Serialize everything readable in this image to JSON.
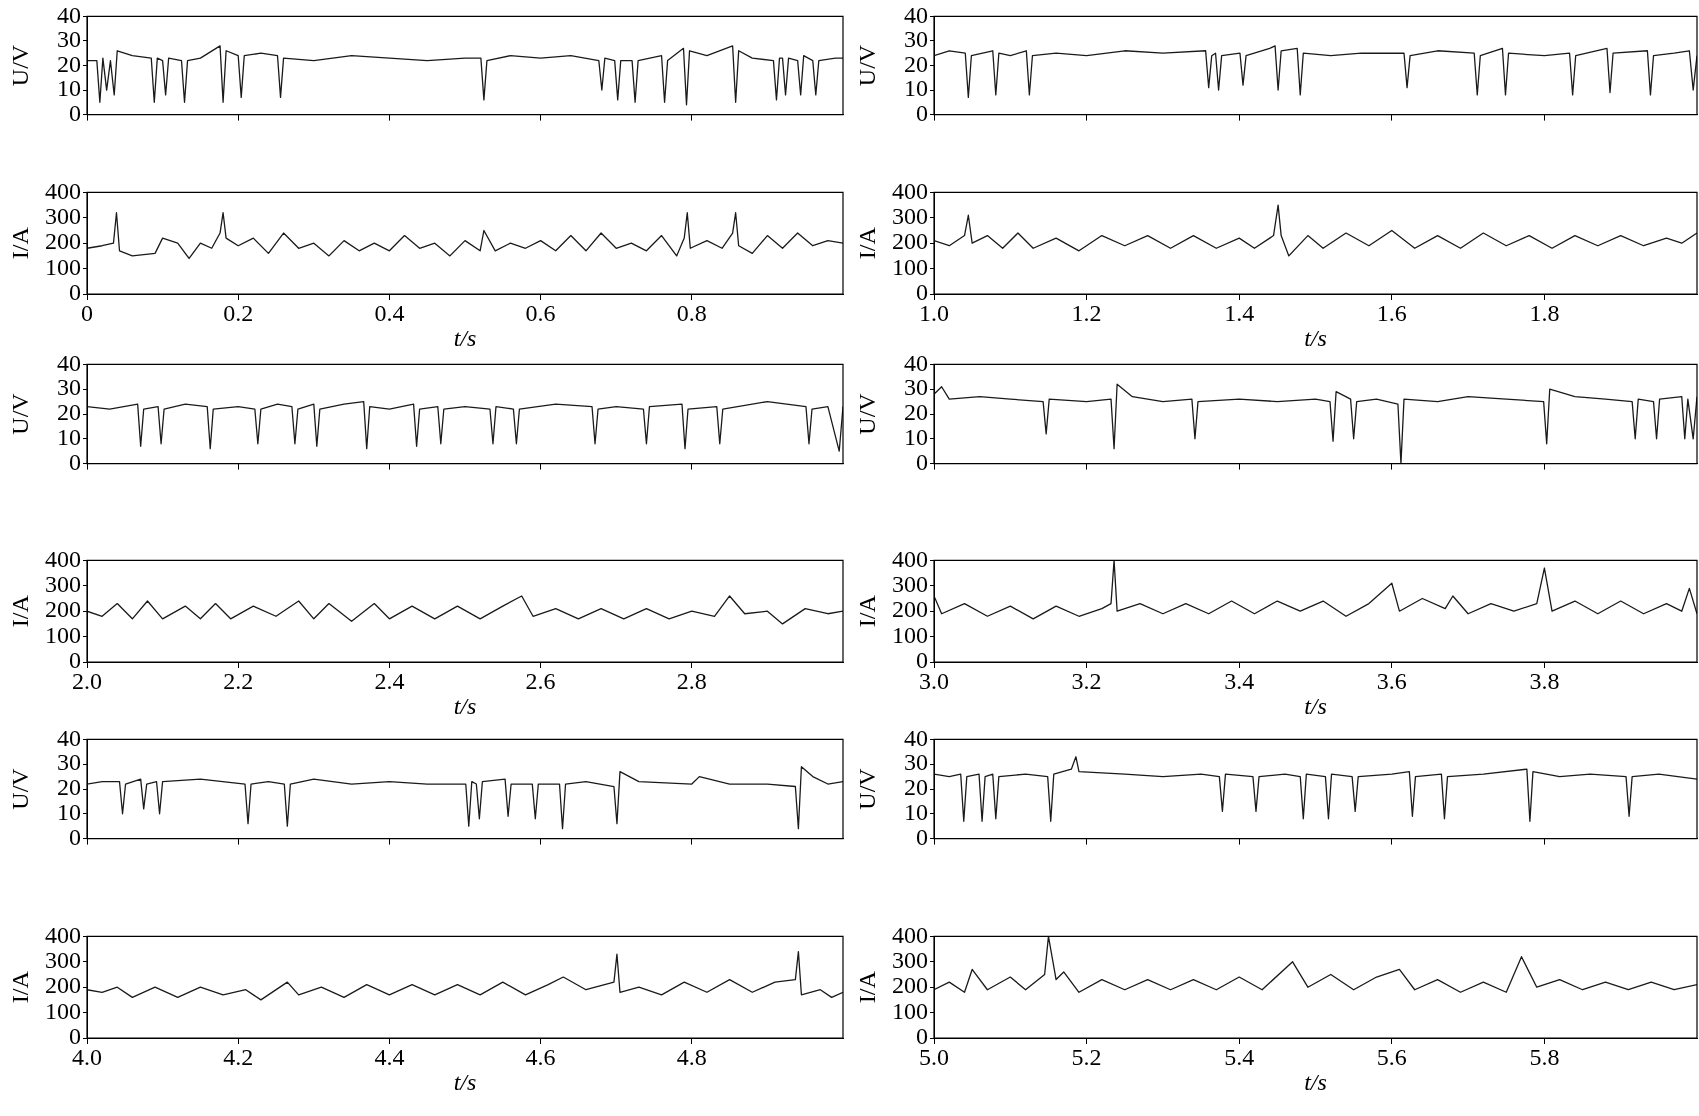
{
  "chart_data": [
    {
      "type": "line",
      "ylabel": "U/V",
      "color": "#1a1a1a",
      "xlim": [
        0,
        1
      ],
      "xticks": [
        0,
        0.2,
        0.4,
        0.6,
        0.8
      ],
      "ylim": [
        0,
        40
      ],
      "yticks": [
        0,
        10,
        20,
        30,
        40
      ],
      "tick_labels": "y",
      "x": [
        0,
        0.013,
        0.017,
        0.021,
        0.026,
        0.031,
        0.036,
        0.04,
        0.06,
        0.085,
        0.089,
        0.093,
        0.1,
        0.104,
        0.108,
        0.125,
        0.129,
        0.133,
        0.15,
        0.176,
        0.18,
        0.184,
        0.2,
        0.204,
        0.208,
        0.23,
        0.252,
        0.256,
        0.26,
        0.3,
        0.35,
        0.4,
        0.45,
        0.5,
        0.521,
        0.525,
        0.529,
        0.56,
        0.6,
        0.64,
        0.677,
        0.681,
        0.685,
        0.698,
        0.702,
        0.706,
        0.721,
        0.725,
        0.729,
        0.76,
        0.764,
        0.768,
        0.789,
        0.793,
        0.797,
        0.82,
        0.854,
        0.858,
        0.862,
        0.88,
        0.908,
        0.912,
        0.916,
        0.92,
        0.924,
        0.928,
        0.94,
        0.944,
        0.948,
        0.96,
        0.964,
        0.968,
        0.99,
        1.0
      ],
      "values": [
        22,
        22,
        5,
        23,
        10,
        22,
        8,
        26,
        24,
        23,
        5,
        23,
        22,
        8,
        23,
        22,
        5,
        22,
        23,
        28,
        5,
        26,
        24,
        7,
        24,
        25,
        24,
        7,
        23,
        22,
        24,
        23,
        22,
        23,
        23,
        6,
        22,
        24,
        23,
        24,
        22,
        10,
        23,
        22,
        6,
        22,
        22,
        5,
        22,
        24,
        5,
        22,
        27,
        4,
        26,
        24,
        28,
        5,
        26,
        23,
        22,
        6,
        23,
        23,
        8,
        23,
        22,
        8,
        24,
        22,
        8,
        22,
        23,
        23
      ]
    },
    {
      "type": "line",
      "ylabel": "U/V",
      "color": "#1a1a1a",
      "xlim": [
        1,
        2
      ],
      "xticks": [
        1,
        1.2,
        1.4,
        1.6,
        1.8
      ],
      "ylim": [
        0,
        40
      ],
      "yticks": [
        0,
        10,
        20,
        30,
        40
      ],
      "tick_labels": "y",
      "x": [
        1,
        1.02,
        1.041,
        1.045,
        1.049,
        1.077,
        1.081,
        1.085,
        1.1,
        1.121,
        1.125,
        1.129,
        1.16,
        1.2,
        1.25,
        1.3,
        1.356,
        1.36,
        1.364,
        1.369,
        1.373,
        1.377,
        1.401,
        1.405,
        1.409,
        1.44,
        1.447,
        1.451,
        1.455,
        1.476,
        1.48,
        1.484,
        1.52,
        1.56,
        1.616,
        1.62,
        1.624,
        1.66,
        1.708,
        1.712,
        1.716,
        1.745,
        1.749,
        1.753,
        1.8,
        1.833,
        1.837,
        1.841,
        1.882,
        1.886,
        1.89,
        1.935,
        1.939,
        1.943,
        1.97,
        1.99,
        1.995,
        2.0
      ],
      "values": [
        24,
        26,
        25,
        7,
        24,
        26,
        8,
        25,
        24,
        26,
        8,
        24,
        25,
        24,
        26,
        25,
        26,
        11,
        24,
        25,
        10,
        24,
        25,
        12,
        24,
        27,
        28,
        10,
        26,
        27,
        8,
        25,
        24,
        25,
        25,
        11,
        24,
        26,
        25,
        8,
        24,
        27,
        8,
        25,
        24,
        25,
        8,
        24,
        27,
        9,
        25,
        26,
        8,
        24,
        25,
        26,
        10,
        24
      ]
    },
    {
      "type": "line",
      "ylabel": "I/A",
      "xlabel": "t/s",
      "color": "#1a1a1a",
      "xlim": [
        0,
        1
      ],
      "xticks": [
        0,
        0.2,
        0.4,
        0.6,
        0.8
      ],
      "ylim": [
        0,
        400
      ],
      "yticks": [
        0,
        100,
        200,
        300,
        400
      ],
      "x": [
        0,
        0.02,
        0.035,
        0.039,
        0.043,
        0.06,
        0.09,
        0.1,
        0.12,
        0.135,
        0.15,
        0.165,
        0.176,
        0.18,
        0.184,
        0.2,
        0.22,
        0.24,
        0.26,
        0.28,
        0.3,
        0.32,
        0.34,
        0.36,
        0.38,
        0.4,
        0.42,
        0.44,
        0.46,
        0.48,
        0.5,
        0.52,
        0.525,
        0.54,
        0.56,
        0.58,
        0.6,
        0.62,
        0.64,
        0.66,
        0.68,
        0.7,
        0.72,
        0.74,
        0.76,
        0.78,
        0.79,
        0.794,
        0.798,
        0.82,
        0.84,
        0.854,
        0.858,
        0.862,
        0.88,
        0.9,
        0.92,
        0.94,
        0.96,
        0.98,
        1.0
      ],
      "values": [
        180,
        190,
        200,
        320,
        170,
        150,
        160,
        220,
        200,
        140,
        200,
        180,
        240,
        320,
        220,
        190,
        220,
        160,
        240,
        180,
        200,
        150,
        210,
        170,
        200,
        170,
        230,
        180,
        200,
        150,
        210,
        170,
        250,
        170,
        200,
        180,
        210,
        170,
        230,
        170,
        240,
        180,
        200,
        170,
        230,
        150,
        220,
        320,
        180,
        210,
        180,
        240,
        320,
        190,
        160,
        230,
        180,
        240,
        190,
        210,
        200
      ]
    },
    {
      "type": "line",
      "ylabel": "I/A",
      "xlabel": "t/s",
      "color": "#1a1a1a",
      "xlim": [
        1,
        2
      ],
      "xticks": [
        {
          "value": 1,
          "label": "1.0"
        },
        1.2,
        1.4,
        1.6,
        1.8
      ],
      "ylim": [
        0,
        400
      ],
      "yticks": [
        0,
        100,
        200,
        300,
        400
      ],
      "x": [
        1,
        1.02,
        1.04,
        1.045,
        1.05,
        1.07,
        1.09,
        1.11,
        1.13,
        1.16,
        1.19,
        1.22,
        1.25,
        1.28,
        1.31,
        1.34,
        1.37,
        1.4,
        1.42,
        1.445,
        1.451,
        1.455,
        1.465,
        1.49,
        1.51,
        1.54,
        1.57,
        1.6,
        1.63,
        1.66,
        1.69,
        1.72,
        1.75,
        1.78,
        1.81,
        1.84,
        1.87,
        1.9,
        1.93,
        1.96,
        1.98,
        2.0
      ],
      "values": [
        210,
        190,
        230,
        310,
        200,
        230,
        180,
        240,
        180,
        220,
        170,
        230,
        190,
        230,
        180,
        230,
        180,
        220,
        180,
        230,
        350,
        230,
        150,
        230,
        180,
        240,
        190,
        250,
        180,
        230,
        180,
        240,
        190,
        230,
        180,
        230,
        190,
        230,
        190,
        220,
        200,
        240
      ]
    },
    {
      "type": "line",
      "ylabel": "U/V",
      "color": "#1a1a1a",
      "xlim": [
        2,
        3
      ],
      "xticks": [
        2,
        2.2,
        2.4,
        2.6,
        2.8
      ],
      "ylim": [
        0,
        40
      ],
      "yticks": [
        0,
        10,
        20,
        30,
        40
      ],
      "tick_labels": "y",
      "x": [
        2,
        2.03,
        2.067,
        2.071,
        2.075,
        2.094,
        2.098,
        2.102,
        2.13,
        2.159,
        2.163,
        2.167,
        2.2,
        2.222,
        2.226,
        2.23,
        2.252,
        2.271,
        2.275,
        2.279,
        2.3,
        2.304,
        2.308,
        2.34,
        2.366,
        2.37,
        2.374,
        2.4,
        2.432,
        2.436,
        2.44,
        2.464,
        2.468,
        2.472,
        2.5,
        2.533,
        2.537,
        2.541,
        2.564,
        2.568,
        2.572,
        2.62,
        2.668,
        2.672,
        2.676,
        2.7,
        2.736,
        2.74,
        2.744,
        2.787,
        2.791,
        2.795,
        2.833,
        2.837,
        2.841,
        2.9,
        2.951,
        2.955,
        2.959,
        2.98,
        2.995,
        3.0
      ],
      "values": [
        23,
        22,
        24,
        7,
        22,
        23,
        8,
        22,
        24,
        23,
        6,
        22,
        23,
        22,
        8,
        22,
        24,
        23,
        8,
        22,
        24,
        7,
        22,
        24,
        25,
        6,
        23,
        22,
        24,
        7,
        22,
        23,
        8,
        22,
        23,
        22,
        8,
        23,
        22,
        8,
        22,
        24,
        23,
        8,
        22,
        23,
        22,
        8,
        23,
        24,
        6,
        22,
        23,
        8,
        22,
        25,
        23,
        8,
        22,
        23,
        5,
        23
      ]
    },
    {
      "type": "line",
      "ylabel": "U/V",
      "color": "#1a1a1a",
      "xlim": [
        3,
        4
      ],
      "xticks": [
        3,
        3.2,
        3.4,
        3.6,
        3.8
      ],
      "ylim": [
        0,
        40
      ],
      "yticks": [
        0,
        10,
        20,
        30,
        40
      ],
      "tick_labels": "y",
      "x": [
        3,
        3.01,
        3.02,
        3.06,
        3.1,
        3.143,
        3.147,
        3.151,
        3.2,
        3.232,
        3.236,
        3.24,
        3.26,
        3.3,
        3.338,
        3.342,
        3.346,
        3.4,
        3.45,
        3.5,
        3.519,
        3.523,
        3.527,
        3.546,
        3.55,
        3.554,
        3.58,
        3.608,
        3.612,
        3.616,
        3.66,
        3.7,
        3.75,
        3.799,
        3.803,
        3.807,
        3.84,
        3.88,
        3.915,
        3.919,
        3.923,
        3.943,
        3.947,
        3.951,
        3.98,
        3.984,
        3.988,
        3.995,
        4.0
      ],
      "values": [
        28,
        31,
        26,
        27,
        26,
        25,
        12,
        26,
        25,
        26,
        6,
        32,
        27,
        25,
        26,
        10,
        25,
        26,
        25,
        26,
        25,
        9,
        29,
        26,
        10,
        25,
        26,
        24,
        0,
        26,
        25,
        27,
        26,
        25,
        8,
        30,
        27,
        26,
        25,
        10,
        26,
        25,
        10,
        26,
        27,
        10,
        26,
        10,
        27
      ]
    },
    {
      "type": "line",
      "ylabel": "I/A",
      "xlabel": "t/s",
      "color": "#1a1a1a",
      "xlim": [
        2,
        3
      ],
      "xticks": [
        {
          "value": 2,
          "label": "2.0"
        },
        2.2,
        2.4,
        2.6,
        2.8
      ],
      "ylim": [
        0,
        400
      ],
      "yticks": [
        0,
        100,
        200,
        300,
        400
      ],
      "x": [
        2,
        2.02,
        2.04,
        2.06,
        2.08,
        2.1,
        2.13,
        2.15,
        2.17,
        2.19,
        2.22,
        2.25,
        2.28,
        2.3,
        2.32,
        2.35,
        2.38,
        2.4,
        2.43,
        2.46,
        2.49,
        2.52,
        2.55,
        2.575,
        2.59,
        2.62,
        2.65,
        2.68,
        2.71,
        2.74,
        2.77,
        2.8,
        2.83,
        2.85,
        2.87,
        2.9,
        2.92,
        2.95,
        2.98,
        3.0
      ],
      "values": [
        200,
        180,
        230,
        170,
        240,
        170,
        220,
        170,
        230,
        170,
        220,
        180,
        240,
        170,
        230,
        160,
        230,
        170,
        220,
        170,
        220,
        170,
        220,
        260,
        180,
        210,
        170,
        210,
        170,
        210,
        170,
        200,
        180,
        260,
        190,
        200,
        150,
        210,
        190,
        200
      ]
    },
    {
      "type": "line",
      "ylabel": "I/A",
      "xlabel": "t/s",
      "color": "#1a1a1a",
      "xlim": [
        3,
        4
      ],
      "xticks": [
        {
          "value": 3,
          "label": "3.0"
        },
        3.2,
        3.4,
        3.6,
        3.8
      ],
      "ylim": [
        0,
        400
      ],
      "yticks": [
        0,
        100,
        200,
        300,
        400
      ],
      "x": [
        3,
        3.01,
        3.04,
        3.07,
        3.1,
        3.13,
        3.16,
        3.19,
        3.22,
        3.232,
        3.236,
        3.24,
        3.27,
        3.3,
        3.33,
        3.36,
        3.39,
        3.42,
        3.45,
        3.48,
        3.51,
        3.54,
        3.57,
        3.6,
        3.61,
        3.64,
        3.67,
        3.68,
        3.7,
        3.73,
        3.76,
        3.79,
        3.8,
        3.81,
        3.84,
        3.87,
        3.9,
        3.93,
        3.96,
        3.98,
        3.99,
        4.0
      ],
      "values": [
        260,
        190,
        230,
        180,
        220,
        170,
        220,
        180,
        210,
        230,
        400,
        200,
        230,
        190,
        230,
        190,
        240,
        190,
        240,
        200,
        240,
        180,
        230,
        310,
        200,
        250,
        210,
        260,
        190,
        230,
        200,
        230,
        370,
        200,
        240,
        190,
        240,
        190,
        230,
        200,
        290,
        190
      ]
    },
    {
      "type": "line",
      "ylabel": "U/V",
      "color": "#1a1a1a",
      "xlim": [
        4,
        5
      ],
      "xticks": [
        4,
        4.2,
        4.4,
        4.6,
        4.8
      ],
      "ylim": [
        0,
        40
      ],
      "yticks": [
        0,
        10,
        20,
        30,
        40
      ],
      "tick_labels": "y",
      "x": [
        4,
        4.02,
        4.043,
        4.047,
        4.051,
        4.071,
        4.075,
        4.079,
        4.092,
        4.096,
        4.1,
        4.15,
        4.209,
        4.213,
        4.217,
        4.24,
        4.261,
        4.265,
        4.269,
        4.3,
        4.35,
        4.4,
        4.45,
        4.501,
        4.505,
        4.509,
        4.515,
        4.519,
        4.523,
        4.553,
        4.557,
        4.561,
        4.589,
        4.593,
        4.597,
        4.625,
        4.629,
        4.633,
        4.66,
        4.697,
        4.701,
        4.705,
        4.73,
        4.8,
        4.81,
        4.85,
        4.9,
        4.937,
        4.941,
        4.945,
        4.96,
        4.98,
        5.0
      ],
      "values": [
        22,
        23,
        23,
        10,
        22,
        24,
        12,
        22,
        23,
        10,
        23,
        24,
        22,
        6,
        22,
        23,
        22,
        5,
        22,
        24,
        22,
        23,
        22,
        22,
        5,
        23,
        22,
        8,
        23,
        24,
        9,
        22,
        22,
        8,
        22,
        22,
        4,
        22,
        23,
        21,
        6,
        27,
        23,
        22,
        25,
        22,
        22,
        21,
        4,
        29,
        25,
        22,
        23
      ]
    },
    {
      "type": "line",
      "ylabel": "U/V",
      "color": "#1a1a1a",
      "xlim": [
        5,
        6
      ],
      "xticks": [
        5,
        5.2,
        5.4,
        5.6,
        5.8
      ],
      "ylim": [
        0,
        40
      ],
      "yticks": [
        0,
        10,
        20,
        30,
        40
      ],
      "tick_labels": "y",
      "x": [
        5,
        5.02,
        5.035,
        5.039,
        5.043,
        5.059,
        5.063,
        5.067,
        5.077,
        5.081,
        5.085,
        5.12,
        5.149,
        5.153,
        5.157,
        5.18,
        5.186,
        5.19,
        5.25,
        5.3,
        5.35,
        5.374,
        5.378,
        5.382,
        5.418,
        5.422,
        5.426,
        5.46,
        5.48,
        5.484,
        5.488,
        5.513,
        5.517,
        5.521,
        5.548,
        5.552,
        5.556,
        5.6,
        5.623,
        5.627,
        5.631,
        5.665,
        5.669,
        5.673,
        5.72,
        5.777,
        5.781,
        5.785,
        5.82,
        5.86,
        5.907,
        5.911,
        5.915,
        5.95,
        6.0
      ],
      "values": [
        26,
        25,
        26,
        7,
        25,
        26,
        7,
        25,
        26,
        8,
        25,
        26,
        25,
        7,
        26,
        28,
        33,
        27,
        26,
        25,
        26,
        25,
        11,
        26,
        25,
        11,
        25,
        26,
        25,
        8,
        26,
        25,
        8,
        26,
        25,
        11,
        25,
        26,
        27,
        9,
        25,
        26,
        8,
        25,
        26,
        28,
        7,
        27,
        25,
        26,
        25,
        9,
        25,
        26,
        24
      ]
    },
    {
      "type": "line",
      "ylabel": "I/A",
      "xlabel": "t/s",
      "color": "#1a1a1a",
      "xlim": [
        4,
        5
      ],
      "xticks": [
        {
          "value": 4,
          "label": "4.0"
        },
        4.2,
        4.4,
        4.6,
        4.8
      ],
      "ylim": [
        0,
        400
      ],
      "yticks": [
        0,
        100,
        200,
        300,
        400
      ],
      "x": [
        4,
        4.02,
        4.04,
        4.06,
        4.09,
        4.12,
        4.15,
        4.18,
        4.21,
        4.23,
        4.265,
        4.28,
        4.31,
        4.34,
        4.37,
        4.4,
        4.43,
        4.46,
        4.49,
        4.52,
        4.55,
        4.58,
        4.61,
        4.63,
        4.66,
        4.697,
        4.701,
        4.705,
        4.73,
        4.76,
        4.79,
        4.82,
        4.85,
        4.88,
        4.91,
        4.937,
        4.941,
        4.945,
        4.97,
        4.985,
        5.0
      ],
      "values": [
        190,
        180,
        200,
        160,
        200,
        160,
        200,
        170,
        190,
        150,
        220,
        170,
        200,
        160,
        210,
        170,
        210,
        170,
        210,
        170,
        220,
        170,
        210,
        240,
        190,
        220,
        330,
        180,
        200,
        170,
        220,
        180,
        230,
        180,
        220,
        230,
        340,
        170,
        190,
        160,
        180
      ]
    },
    {
      "type": "line",
      "ylabel": "I/A",
      "xlabel": "t/s",
      "color": "#1a1a1a",
      "xlim": [
        5,
        6
      ],
      "xticks": [
        {
          "value": 5,
          "label": "5.0"
        },
        5.2,
        5.4,
        5.6,
        5.8
      ],
      "ylim": [
        0,
        400
      ],
      "yticks": [
        0,
        100,
        200,
        300,
        400
      ],
      "x": [
        5,
        5.02,
        5.04,
        5.05,
        5.07,
        5.1,
        5.12,
        5.145,
        5.15,
        5.16,
        5.17,
        5.19,
        5.22,
        5.25,
        5.28,
        5.31,
        5.34,
        5.37,
        5.4,
        5.43,
        5.47,
        5.49,
        5.52,
        5.55,
        5.58,
        5.61,
        5.63,
        5.66,
        5.69,
        5.72,
        5.75,
        5.77,
        5.79,
        5.82,
        5.85,
        5.88,
        5.91,
        5.94,
        5.97,
        6.0
      ],
      "values": [
        190,
        220,
        180,
        270,
        190,
        240,
        190,
        250,
        400,
        230,
        260,
        180,
        230,
        190,
        230,
        190,
        230,
        190,
        240,
        190,
        300,
        200,
        250,
        190,
        240,
        270,
        190,
        230,
        180,
        220,
        180,
        320,
        200,
        230,
        190,
        220,
        190,
        220,
        190,
        210
      ]
    }
  ]
}
